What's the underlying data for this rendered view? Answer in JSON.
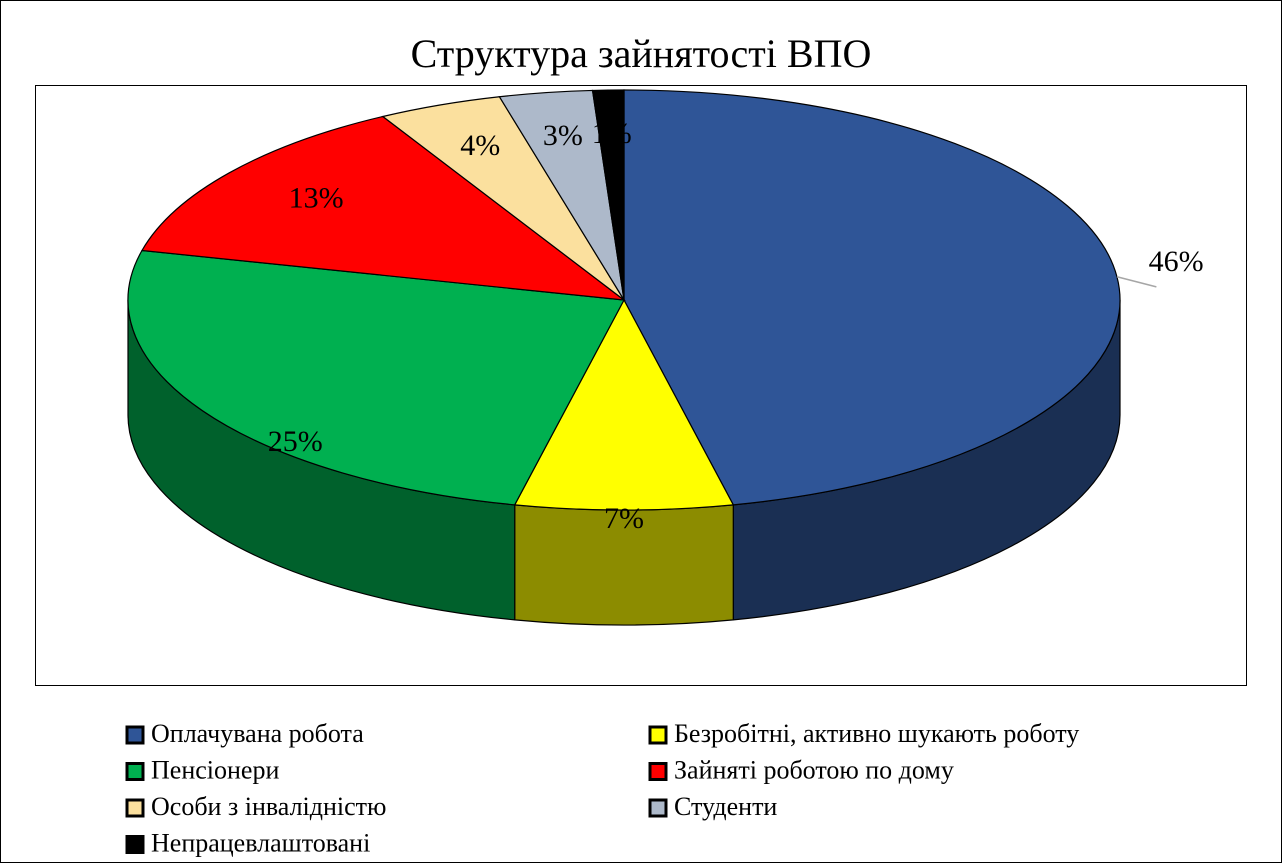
{
  "chart_data": {
    "type": "pie3d",
    "title": "Структура зайнятості ВПО",
    "categories": [
      "Оплачувана робота",
      "Безробітні, активно шукають роботу",
      "Пенсіонери",
      "Зайняті роботою по дому",
      "Особи з інвалідністю",
      "Студенти",
      "Непрацевлаштовані"
    ],
    "values": [
      46,
      7,
      25,
      13,
      4,
      3,
      1
    ],
    "value_labels": [
      "46%",
      "7%",
      "25%",
      "13%",
      "4%",
      "3%",
      "1%"
    ],
    "colors": [
      "#2f5597",
      "#ffff00",
      "#00b050",
      "#ff0000",
      "#fbe09e",
      "#adb9ca",
      "#000000"
    ],
    "legend": "bottom"
  }
}
